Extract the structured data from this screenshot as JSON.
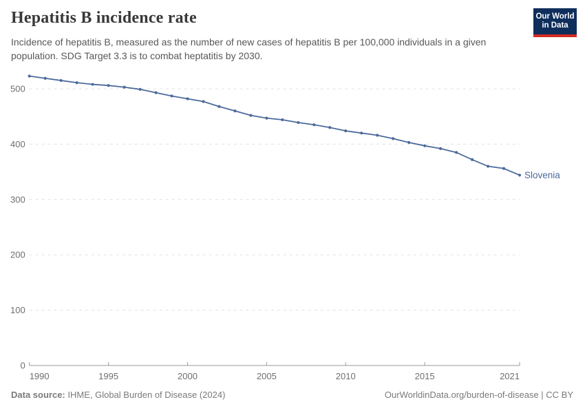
{
  "header": {
    "title": "Hepatitis B incidence rate",
    "subtitle": "Incidence of hepatitis B, measured as the number of new cases of hepatitis B per 100,000 individuals in a given population. SDG Target 3.3 is to combat heptatitis by 2030.",
    "logo": {
      "line1": "Our World",
      "line2": "in Data",
      "bg_color": "#0f2e5c",
      "stripe_color": "#d42b21"
    }
  },
  "chart_data": {
    "type": "line",
    "title": "Hepatitis B incidence rate",
    "entity_label": "Slovenia",
    "x": [
      1990,
      1991,
      1992,
      1993,
      1994,
      1995,
      1996,
      1997,
      1998,
      1999,
      2000,
      2001,
      2002,
      2003,
      2004,
      2005,
      2006,
      2007,
      2008,
      2009,
      2010,
      2011,
      2012,
      2013,
      2014,
      2015,
      2016,
      2017,
      2018,
      2019,
      2020,
      2021
    ],
    "values": [
      523,
      519,
      515,
      511,
      508,
      506,
      503,
      499,
      493,
      487,
      482,
      477,
      468,
      460,
      452,
      447,
      444,
      439,
      435,
      430,
      424,
      420,
      416,
      410,
      403,
      397,
      392,
      385,
      372,
      360,
      356,
      344
    ],
    "xticks": [
      1990,
      1995,
      2000,
      2005,
      2010,
      2015,
      2021
    ],
    "yticks": [
      0,
      100,
      200,
      300,
      400,
      500
    ],
    "ylim": [
      0,
      530
    ],
    "xlim": [
      1990,
      2021
    ],
    "grid": true,
    "legend_position": "end-of-line",
    "line_color": "#4c6a9c",
    "marker": "dot"
  },
  "footer": {
    "source_label": "Data source:",
    "source_text": "IHME, Global Burden of Disease (2024)",
    "right_text": "OurWorldinData.org/burden-of-disease | CC BY"
  }
}
